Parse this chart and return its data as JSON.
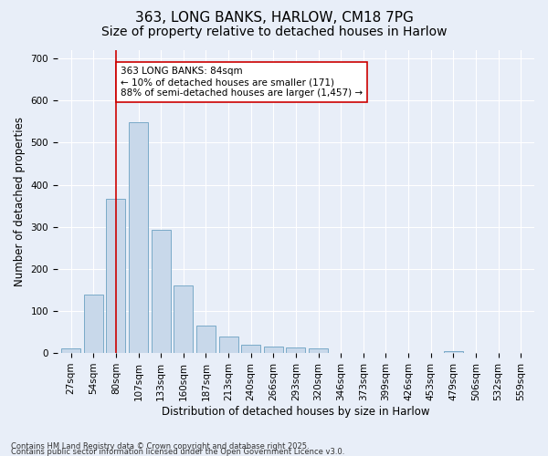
{
  "title": "363, LONG BANKS, HARLOW, CM18 7PG",
  "subtitle": "Size of property relative to detached houses in Harlow",
  "xlabel": "Distribution of detached houses by size in Harlow",
  "ylabel": "Number of detached properties",
  "bar_labels": [
    "27sqm",
    "54sqm",
    "80sqm",
    "107sqm",
    "133sqm",
    "160sqm",
    "187sqm",
    "213sqm",
    "240sqm",
    "266sqm",
    "293sqm",
    "320sqm",
    "346sqm",
    "373sqm",
    "399sqm",
    "426sqm",
    "453sqm",
    "479sqm",
    "506sqm",
    "532sqm",
    "559sqm"
  ],
  "bar_values": [
    10,
    138,
    367,
    549,
    292,
    161,
    65,
    39,
    19,
    15,
    13,
    10,
    0,
    0,
    0,
    0,
    0,
    5,
    0,
    0,
    0
  ],
  "bar_color": "#c8d8ea",
  "bar_edge_color": "#7aaac8",
  "vline_x": 2,
  "vline_color": "#cc0000",
  "annotation_text": "363 LONG BANKS: 84sqm\n← 10% of detached houses are smaller (171)\n88% of semi-detached houses are larger (1,457) →",
  "annotation_box_color": "#ffffff",
  "annotation_box_edge": "#cc0000",
  "ylim": [
    0,
    720
  ],
  "yticks": [
    0,
    100,
    200,
    300,
    400,
    500,
    600,
    700
  ],
  "background_color": "#e8eef8",
  "footer_line1": "Contains HM Land Registry data © Crown copyright and database right 2025.",
  "footer_line2": "Contains public sector information licensed under the Open Government Licence v3.0.",
  "title_fontsize": 11,
  "subtitle_fontsize": 10,
  "axis_label_fontsize": 8.5,
  "tick_fontsize": 7.5,
  "annot_fontsize": 7.5,
  "footer_fontsize": 6.0
}
